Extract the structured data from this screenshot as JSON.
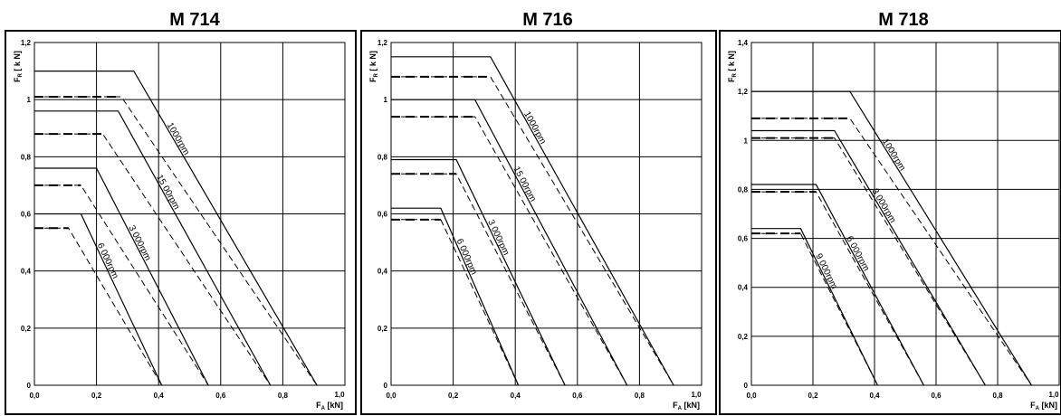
{
  "chart_data": [
    {
      "type": "line",
      "title": "M 714",
      "xlabel": "F",
      "xlabel_sub": "A",
      "xlabel_unit": " [kN]",
      "ylabel": "F",
      "ylabel_sub": "R",
      "ylabel_unit": "[ k N]",
      "xlim": [
        0,
        1.0
      ],
      "ylim": [
        0,
        1.2
      ],
      "xticks": [
        "0,0",
        "0,2",
        "0,4",
        "0,6",
        "0,8",
        "1,0"
      ],
      "yticks": [
        "0",
        "0,2",
        "0,4",
        "0,6",
        "0,8",
        "1",
        "1,2"
      ],
      "ytick_values": [
        0,
        0.2,
        0.4,
        0.6,
        0.8,
        1.0,
        1.2
      ],
      "grid": true,
      "series": [
        {
          "name": "1000rpm",
          "style": "solid",
          "x": [
            0,
            0.32,
            0.91
          ],
          "y": [
            1.1,
            1.1,
            0
          ]
        },
        {
          "style": "dashed",
          "x": [
            0,
            0.28,
            0.91
          ],
          "y": [
            1.01,
            1.01,
            0
          ]
        },
        {
          "name": "15 00rpm",
          "style": "solid",
          "x": [
            0,
            0.27,
            0.76
          ],
          "y": [
            0.96,
            0.96,
            0
          ]
        },
        {
          "style": "dashed",
          "x": [
            0,
            0.22,
            0.76
          ],
          "y": [
            0.88,
            0.88,
            0
          ]
        },
        {
          "name": "3 000rpm",
          "style": "solid",
          "x": [
            0,
            0.2,
            0.56
          ],
          "y": [
            0.76,
            0.76,
            0
          ]
        },
        {
          "style": "dashed",
          "x": [
            0,
            0.15,
            0.56
          ],
          "y": [
            0.7,
            0.7,
            0
          ]
        },
        {
          "name": "6 000rpm",
          "style": "solid",
          "x": [
            0,
            0.15,
            0.41
          ],
          "y": [
            0.6,
            0.6,
            0
          ]
        },
        {
          "style": "dashed",
          "x": [
            0,
            0.11,
            0.41
          ],
          "y": [
            0.55,
            0.55,
            0
          ]
        }
      ]
    },
    {
      "type": "line",
      "title": "M 716",
      "xlabel": "F",
      "xlabel_sub": "A",
      "xlabel_unit": " [kN]",
      "ylabel": "F",
      "ylabel_sub": "R",
      "ylabel_unit": "[ k N]",
      "xlim": [
        0,
        1.0
      ],
      "ylim": [
        0,
        1.2
      ],
      "xticks": [
        "0,0",
        "0,2",
        "0,4",
        "0,6",
        "0,8",
        "1,0"
      ],
      "yticks": [
        "0",
        "0,2",
        "0,4",
        "0,6",
        "0,8",
        "1",
        "1,2"
      ],
      "ytick_values": [
        0,
        0.2,
        0.4,
        0.6,
        0.8,
        1.0,
        1.2
      ],
      "grid": true,
      "series": [
        {
          "name": "1000rpm",
          "style": "solid",
          "x": [
            0,
            0.32,
            0.91
          ],
          "y": [
            1.15,
            1.15,
            0
          ]
        },
        {
          "style": "dashed",
          "x": [
            0,
            0.32,
            0.91
          ],
          "y": [
            1.08,
            1.08,
            0
          ]
        },
        {
          "name": "15 00rpm",
          "style": "solid",
          "x": [
            0,
            0.27,
            0.76
          ],
          "y": [
            1.0,
            1.0,
            0
          ]
        },
        {
          "style": "dashed",
          "x": [
            0,
            0.27,
            0.76
          ],
          "y": [
            0.94,
            0.94,
            0
          ]
        },
        {
          "name": "3 000rpm",
          "style": "solid",
          "x": [
            0,
            0.21,
            0.56
          ],
          "y": [
            0.79,
            0.79,
            0
          ]
        },
        {
          "style": "dashed",
          "x": [
            0,
            0.21,
            0.56
          ],
          "y": [
            0.74,
            0.74,
            0
          ]
        },
        {
          "name": "6 000rpm",
          "style": "solid",
          "x": [
            0,
            0.16,
            0.41
          ],
          "y": [
            0.62,
            0.62,
            0
          ]
        },
        {
          "style": "dashed",
          "x": [
            0,
            0.16,
            0.41
          ],
          "y": [
            0.58,
            0.58,
            0
          ]
        }
      ]
    },
    {
      "type": "line",
      "title": "M 718",
      "xlabel": "F",
      "xlabel_sub": "A",
      "xlabel_unit": " [kN]",
      "ylabel": "F",
      "ylabel_sub": "R",
      "ylabel_unit": "[ k N]",
      "xlim": [
        0,
        1.0
      ],
      "ylim": [
        0,
        1.4
      ],
      "xticks": [
        "0,0",
        "0,2",
        "0,4",
        "0,6",
        "0,8",
        "1,0"
      ],
      "yticks": [
        "0",
        "0,2",
        "0,4",
        "0,6",
        "0,8",
        "1",
        "1,2",
        "1,4"
      ],
      "ytick_values": [
        0,
        0.2,
        0.4,
        0.6,
        0.8,
        1.0,
        1.2,
        1.4
      ],
      "grid": true,
      "series": [
        {
          "name": "1000rpm",
          "style": "solid",
          "x": [
            0,
            0.32,
            0.91
          ],
          "y": [
            1.2,
            1.2,
            0
          ]
        },
        {
          "style": "dashed",
          "x": [
            0,
            0.32,
            0.91
          ],
          "y": [
            1.09,
            1.09,
            0
          ]
        },
        {
          "name": "3 000rpm",
          "style": "solid",
          "x": [
            0,
            0.27,
            0.76
          ],
          "y": [
            1.04,
            1.04,
            0
          ]
        },
        {
          "style": "dashed",
          "x": [
            0,
            0.27,
            0.76
          ],
          "y": [
            1.01,
            1.01,
            0
          ]
        },
        {
          "name": "6 000rpm",
          "style": "solid",
          "x": [
            0,
            0.21,
            0.56
          ],
          "y": [
            0.82,
            0.82,
            0
          ]
        },
        {
          "style": "dashed",
          "x": [
            0,
            0.21,
            0.56
          ],
          "y": [
            0.79,
            0.79,
            0
          ]
        },
        {
          "name": "9 000rpm",
          "style": "solid",
          "x": [
            0,
            0.16,
            0.41
          ],
          "y": [
            0.64,
            0.64,
            0
          ]
        },
        {
          "style": "dashed",
          "x": [
            0,
            0.16,
            0.41
          ],
          "y": [
            0.62,
            0.62,
            0
          ]
        }
      ]
    }
  ]
}
